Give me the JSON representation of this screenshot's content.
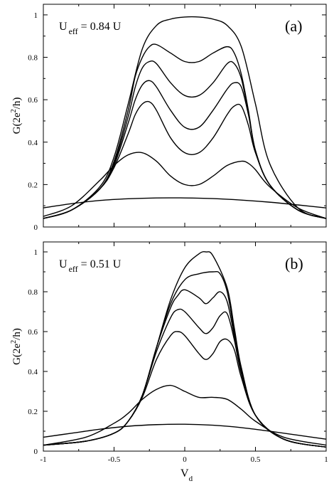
{
  "chart_data": [
    {
      "type": "line",
      "panel_label": "(a)",
      "annotation": {
        "prefix": "U",
        "subscript": "eff",
        "suffix": " = 0.84 U"
      },
      "ylabel": {
        "main": "G(2e",
        "sup": "2",
        "tail": "/h)"
      },
      "xlim": [
        -1,
        1
      ],
      "ylim": [
        0,
        1.05
      ],
      "grid": false,
      "x_ticks": [
        -1,
        -0.5,
        0,
        0.5,
        1
      ],
      "x_tick_labels": [
        "",
        "",
        "",
        "",
        ""
      ],
      "y_ticks": [
        0,
        0.2,
        0.4,
        0.6,
        0.8,
        1
      ],
      "y_tick_labels": [
        "0",
        "0.2",
        "0.4",
        "0.6",
        "0.8",
        "1"
      ],
      "series": [
        {
          "x": [
            -1,
            -0.8,
            -0.6,
            -0.5,
            -0.4,
            -0.3,
            -0.2,
            -0.1,
            0,
            0.1,
            0.2,
            0.3,
            0.4,
            0.5,
            0.6,
            0.8,
            1
          ],
          "y": [
            0.04,
            0.08,
            0.19,
            0.33,
            0.58,
            0.84,
            0.95,
            0.98,
            0.99,
            0.99,
            0.98,
            0.95,
            0.85,
            0.58,
            0.3,
            0.09,
            0.04
          ]
        },
        {
          "x": [
            -1,
            -0.8,
            -0.6,
            -0.5,
            -0.4,
            -0.35,
            -0.3,
            -0.25,
            -0.2,
            -0.1,
            0,
            0.1,
            0.2,
            0.3,
            0.35,
            0.4,
            0.45,
            0.5,
            0.6,
            0.8,
            1
          ],
          "y": [
            0.04,
            0.08,
            0.18,
            0.31,
            0.55,
            0.71,
            0.8,
            0.85,
            0.86,
            0.82,
            0.78,
            0.78,
            0.82,
            0.85,
            0.82,
            0.72,
            0.55,
            0.36,
            0.2,
            0.08,
            0.04
          ]
        },
        {
          "x": [
            -1,
            -0.8,
            -0.6,
            -0.5,
            -0.4,
            -0.35,
            -0.3,
            -0.25,
            -0.2,
            -0.1,
            0,
            0.1,
            0.2,
            0.3,
            0.35,
            0.4,
            0.45,
            0.5,
            0.6,
            0.8,
            1
          ],
          "y": [
            0.04,
            0.08,
            0.18,
            0.3,
            0.52,
            0.66,
            0.75,
            0.78,
            0.77,
            0.68,
            0.62,
            0.62,
            0.68,
            0.77,
            0.77,
            0.7,
            0.54,
            0.36,
            0.2,
            0.08,
            0.04
          ]
        },
        {
          "x": [
            -1,
            -0.8,
            -0.6,
            -0.5,
            -0.4,
            -0.35,
            -0.3,
            -0.25,
            -0.2,
            -0.1,
            0,
            0.1,
            0.2,
            0.3,
            0.35,
            0.4,
            0.45,
            0.5,
            0.6,
            0.8,
            1
          ],
          "y": [
            0.04,
            0.08,
            0.18,
            0.29,
            0.49,
            0.6,
            0.67,
            0.69,
            0.66,
            0.55,
            0.47,
            0.47,
            0.55,
            0.65,
            0.68,
            0.66,
            0.53,
            0.36,
            0.2,
            0.08,
            0.04
          ]
        },
        {
          "x": [
            -1,
            -0.8,
            -0.6,
            -0.5,
            -0.4,
            -0.35,
            -0.3,
            -0.25,
            -0.2,
            -0.1,
            0,
            0.1,
            0.2,
            0.3,
            0.35,
            0.4,
            0.45,
            0.5,
            0.6,
            0.8,
            1
          ],
          "y": [
            0.04,
            0.08,
            0.18,
            0.28,
            0.44,
            0.53,
            0.58,
            0.59,
            0.55,
            0.42,
            0.35,
            0.35,
            0.42,
            0.53,
            0.57,
            0.57,
            0.48,
            0.35,
            0.2,
            0.08,
            0.04
          ]
        },
        {
          "x": [
            -1,
            -0.8,
            -0.6,
            -0.5,
            -0.4,
            -0.3,
            -0.2,
            -0.1,
            0,
            0.1,
            0.2,
            0.3,
            0.4,
            0.45,
            0.5,
            0.6,
            0.8,
            1
          ],
          "y": [
            0.05,
            0.1,
            0.22,
            0.29,
            0.34,
            0.35,
            0.31,
            0.24,
            0.2,
            0.2,
            0.24,
            0.29,
            0.31,
            0.3,
            0.27,
            0.19,
            0.09,
            0.04
          ]
        },
        {
          "x": [
            -1,
            -0.8,
            -0.6,
            -0.4,
            -0.2,
            0,
            0.2,
            0.4,
            0.6,
            0.8,
            1
          ],
          "y": [
            0.09,
            0.11,
            0.125,
            0.133,
            0.137,
            0.137,
            0.134,
            0.127,
            0.117,
            0.104,
            0.09
          ]
        }
      ]
    },
    {
      "type": "line",
      "panel_label": "(b)",
      "annotation": {
        "prefix": "U",
        "subscript": "eff",
        "suffix": " = 0.51 U"
      },
      "ylabel": {
        "main": "G(2e",
        "sup": "2",
        "tail": "/h)"
      },
      "xlabel": {
        "main": "V",
        "sub": "d"
      },
      "xlim": [
        -1,
        1
      ],
      "ylim": [
        0,
        1.05
      ],
      "grid": false,
      "x_ticks": [
        -1,
        -0.5,
        0,
        0.5,
        1
      ],
      "x_tick_labels": [
        "-1",
        "-0.5",
        "0",
        "0.5",
        "1"
      ],
      "y_ticks": [
        0,
        0.2,
        0.4,
        0.6,
        0.8,
        1
      ],
      "y_tick_labels": [
        "0",
        "0.2",
        "0.4",
        "0.6",
        "0.8",
        "1"
      ],
      "series": [
        {
          "x": [
            -1,
            -0.7,
            -0.5,
            -0.4,
            -0.3,
            -0.2,
            -0.1,
            0,
            0.1,
            0.15,
            0.2,
            0.3,
            0.35,
            0.4,
            0.5,
            0.7,
            1
          ],
          "y": [
            0.03,
            0.05,
            0.09,
            0.15,
            0.28,
            0.52,
            0.76,
            0.92,
            0.99,
            1.0,
            0.98,
            0.82,
            0.62,
            0.42,
            0.18,
            0.06,
            0.02
          ]
        },
        {
          "x": [
            -1,
            -0.7,
            -0.5,
            -0.4,
            -0.3,
            -0.2,
            -0.1,
            0,
            0.1,
            0.2,
            0.25,
            0.3,
            0.35,
            0.4,
            0.5,
            0.7,
            1
          ],
          "y": [
            0.03,
            0.05,
            0.09,
            0.15,
            0.28,
            0.52,
            0.74,
            0.86,
            0.89,
            0.9,
            0.89,
            0.8,
            0.6,
            0.41,
            0.18,
            0.06,
            0.02
          ]
        },
        {
          "x": [
            -1,
            -0.7,
            -0.5,
            -0.4,
            -0.3,
            -0.2,
            -0.1,
            -0.05,
            0,
            0.1,
            0.15,
            0.2,
            0.25,
            0.3,
            0.35,
            0.4,
            0.5,
            0.7,
            1
          ],
          "y": [
            0.03,
            0.05,
            0.09,
            0.15,
            0.28,
            0.52,
            0.72,
            0.78,
            0.81,
            0.77,
            0.74,
            0.77,
            0.8,
            0.75,
            0.58,
            0.4,
            0.18,
            0.06,
            0.02
          ]
        },
        {
          "x": [
            -1,
            -0.7,
            -0.5,
            -0.4,
            -0.3,
            -0.2,
            -0.1,
            -0.05,
            0,
            0.1,
            0.15,
            0.2,
            0.25,
            0.3,
            0.35,
            0.4,
            0.5,
            0.7,
            1
          ],
          "y": [
            0.03,
            0.05,
            0.09,
            0.15,
            0.28,
            0.5,
            0.67,
            0.71,
            0.7,
            0.62,
            0.59,
            0.62,
            0.68,
            0.69,
            0.56,
            0.39,
            0.18,
            0.06,
            0.02
          ]
        },
        {
          "x": [
            -1,
            -0.7,
            -0.5,
            -0.4,
            -0.3,
            -0.2,
            -0.1,
            -0.05,
            0,
            0.1,
            0.15,
            0.2,
            0.25,
            0.3,
            0.35,
            0.4,
            0.5,
            0.7,
            1
          ],
          "y": [
            0.03,
            0.05,
            0.09,
            0.15,
            0.27,
            0.46,
            0.58,
            0.6,
            0.58,
            0.49,
            0.46,
            0.49,
            0.55,
            0.56,
            0.51,
            0.37,
            0.18,
            0.06,
            0.02
          ]
        },
        {
          "x": [
            -1,
            -0.7,
            -0.5,
            -0.4,
            -0.3,
            -0.2,
            -0.1,
            0,
            0.1,
            0.2,
            0.3,
            0.4,
            0.5,
            0.7,
            1
          ],
          "y": [
            0.03,
            0.07,
            0.14,
            0.19,
            0.26,
            0.31,
            0.33,
            0.3,
            0.27,
            0.27,
            0.26,
            0.21,
            0.15,
            0.07,
            0.03
          ]
        },
        {
          "x": [
            -1,
            -0.8,
            -0.6,
            -0.4,
            -0.2,
            0,
            0.2,
            0.4,
            0.6,
            0.8,
            1
          ],
          "y": [
            0.07,
            0.09,
            0.11,
            0.125,
            0.133,
            0.135,
            0.13,
            0.118,
            0.1,
            0.08,
            0.06
          ]
        }
      ]
    }
  ]
}
